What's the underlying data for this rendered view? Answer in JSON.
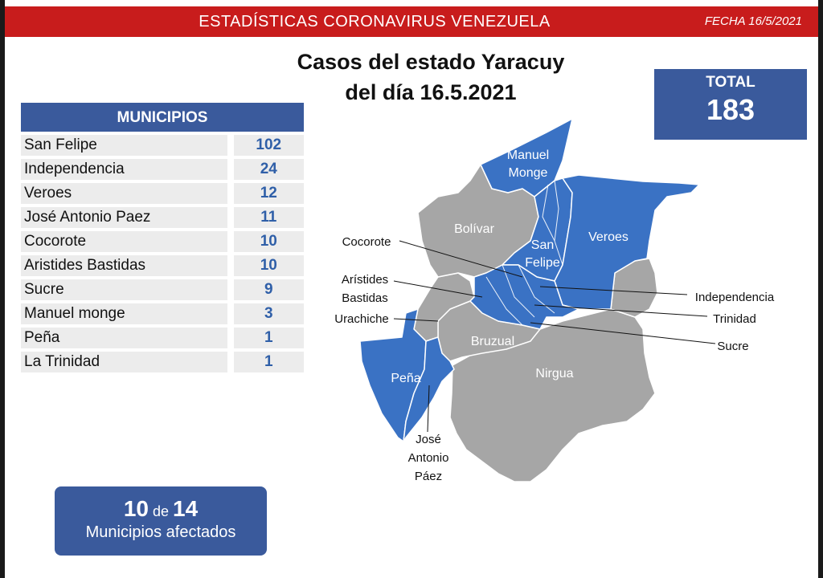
{
  "header": {
    "title": "ESTADÍSTICAS CORONAVIRUS VENEZUELA",
    "date": "FECHA 16/5/2021"
  },
  "title": {
    "line1": "Casos del estado Yaracuy",
    "line2": "del día 16.5.2021"
  },
  "total": {
    "label": "TOTAL",
    "value": "183"
  },
  "table": {
    "header": "MUNICIPIOS",
    "rows": [
      {
        "name": "San Felipe",
        "value": "102"
      },
      {
        "name": "Independencia",
        "value": "24"
      },
      {
        "name": "Veroes",
        "value": "12"
      },
      {
        "name": "José Antonio Paez",
        "value": "11"
      },
      {
        "name": "Cocorote",
        "value": "10"
      },
      {
        "name": "Aristides Bastidas",
        "value": "10"
      },
      {
        "name": "Sucre",
        "value": "9"
      },
      {
        "name": "Manuel monge",
        "value": "3"
      },
      {
        "name": "Peña",
        "value": "1"
      },
      {
        "name": "La Trinidad",
        "value": "1"
      }
    ]
  },
  "affected": {
    "count": "10",
    "connector": "de",
    "total": "14",
    "label": "Municipios afectados"
  },
  "map": {
    "colors": {
      "affected": "#3a72c4",
      "unaffected": "#a6a6a6",
      "border": "#ffffff"
    },
    "labels": {
      "manuel_monge_1": "Manuel",
      "manuel_monge_2": "Monge",
      "bolivar": "Bolívar",
      "san_felipe_1": "San",
      "san_felipe_2": "Felipe",
      "veroes": "Veroes",
      "bruzual": "Bruzual",
      "nirgua": "Nirgua",
      "pena": "Peña",
      "cocorote": "Cocorote",
      "aristides_1": "Arístides",
      "aristides_2": "Bastidas",
      "urachiche": "Urachiche",
      "independencia": "Independencia",
      "trinidad": "Trinidad",
      "sucre": "Sucre",
      "jap_1": "José",
      "jap_2": "Antonio",
      "jap_3": "Páez"
    }
  }
}
